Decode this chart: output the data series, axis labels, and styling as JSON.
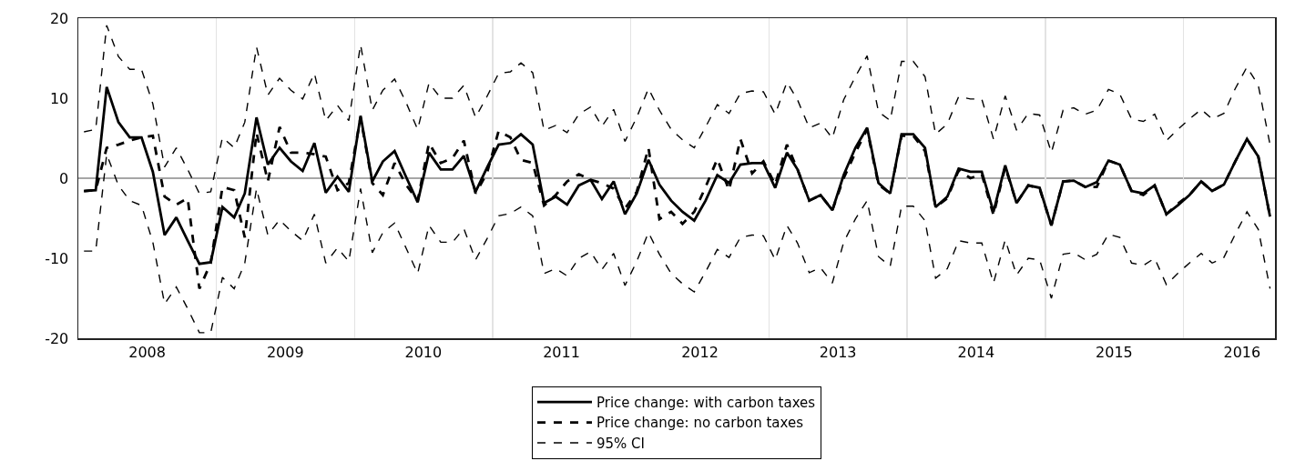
{
  "chart_data": {
    "type": "line",
    "x": [
      "2008-01",
      "2008-02",
      "2008-03",
      "2008-04",
      "2008-05",
      "2008-06",
      "2008-07",
      "2008-08",
      "2008-09",
      "2008-10",
      "2008-11",
      "2008-12",
      "2009-01",
      "2009-02",
      "2009-03",
      "2009-04",
      "2009-05",
      "2009-06",
      "2009-07",
      "2009-08",
      "2009-09",
      "2009-10",
      "2009-11",
      "2009-12",
      "2010-01",
      "2010-02",
      "2010-03",
      "2010-04",
      "2010-05",
      "2010-06",
      "2010-07",
      "2010-08",
      "2010-09",
      "2010-10",
      "2010-11",
      "2010-12",
      "2011-01",
      "2011-02",
      "2011-03",
      "2011-04",
      "2011-05",
      "2011-06",
      "2011-07",
      "2011-08",
      "2011-09",
      "2011-10",
      "2011-11",
      "2011-12",
      "2012-01",
      "2012-02",
      "2012-03",
      "2012-04",
      "2012-05",
      "2012-06",
      "2012-07",
      "2012-08",
      "2012-09",
      "2012-10",
      "2012-11",
      "2012-12",
      "2013-01",
      "2013-02",
      "2013-03",
      "2013-04",
      "2013-05",
      "2013-06",
      "2013-07",
      "2013-08",
      "2013-09",
      "2013-10",
      "2013-11",
      "2013-12",
      "2014-01",
      "2014-02",
      "2014-03",
      "2014-04",
      "2014-05",
      "2014-06",
      "2014-07",
      "2014-08",
      "2014-09",
      "2014-10",
      "2014-11",
      "2014-12",
      "2015-01",
      "2015-02",
      "2015-03",
      "2015-04",
      "2015-05",
      "2015-06",
      "2015-07",
      "2015-08",
      "2015-09",
      "2015-10",
      "2015-11",
      "2015-12",
      "2016-01",
      "2016-02",
      "2016-03",
      "2016-04",
      "2016-05",
      "2016-06",
      "2016-07",
      "2016-08"
    ],
    "series": [
      {
        "name": "Price change: with carbon taxes",
        "color": "#000000",
        "line_style": "solid",
        "values": [
          -1.6,
          -1.5,
          11.4,
          7.0,
          5.1,
          5.1,
          0.8,
          -7.1,
          -4.9,
          -7.8,
          -10.7,
          -10.5,
          -3.6,
          -4.9,
          -1.9,
          7.6,
          1.7,
          3.8,
          2.1,
          0.9,
          4.4,
          -1.8,
          0.2,
          -1.7,
          7.8,
          -0.4,
          2.1,
          3.4,
          0.2,
          -3.0,
          3.2,
          1.1,
          1.1,
          2.8,
          -1.7,
          1.3,
          4.2,
          4.4,
          5.5,
          4.2,
          -3.1,
          -2.3,
          -3.3,
          -0.9,
          -0.2,
          -2.6,
          -0.4,
          -4.5,
          -1.9,
          2.3,
          -0.8,
          -2.8,
          -4.2,
          -5.3,
          -2.8,
          0.4,
          -0.6,
          1.7,
          1.9,
          1.9,
          -1.2,
          3.2,
          1.1,
          -2.8,
          -2.1,
          -4.0,
          0.4,
          3.8,
          6.3,
          -0.6,
          -1.9,
          5.5,
          5.5,
          3.8,
          -3.6,
          -2.3,
          1.2,
          0.8,
          0.8,
          -4.2,
          1.6,
          -3.1,
          -0.9,
          -1.2,
          -5.9,
          -0.4,
          -0.3,
          -1.1,
          -0.5,
          2.2,
          1.7,
          -1.6,
          -1.9,
          -0.9,
          -4.5,
          -3.4,
          -2.1,
          -0.4,
          -1.6,
          -0.8,
          2.1,
          4.9,
          2.7,
          -4.8
        ]
      },
      {
        "name": "Price change: no carbon taxes",
        "color": "#000000",
        "line_style": "dashed",
        "values": [
          -1.6,
          -1.5,
          3.8,
          4.2,
          4.7,
          5.1,
          5.3,
          -2.3,
          -3.3,
          -2.5,
          -13.8,
          -10.6,
          -1.1,
          -1.5,
          -7.4,
          5.7,
          -0.4,
          6.4,
          3.2,
          3.2,
          3.0,
          2.7,
          -1.5,
          -0.6,
          7.6,
          -0.6,
          -2.1,
          1.9,
          -0.8,
          -2.8,
          4.4,
          1.9,
          2.5,
          4.7,
          -1.9,
          0.6,
          5.9,
          5.1,
          2.3,
          1.9,
          -3.4,
          -2.1,
          -0.4,
          0.5,
          -0.2,
          -0.6,
          -1.3,
          -3.8,
          -1.7,
          3.8,
          -5.1,
          -4.2,
          -5.7,
          -4.2,
          -1.1,
          2.4,
          -1.5,
          4.9,
          0.6,
          2.1,
          -0.8,
          4.2,
          1.1,
          -2.8,
          -2.1,
          -4.0,
          0.0,
          3.2,
          6.1,
          -0.8,
          -1.9,
          5.3,
          5.3,
          3.4,
          -3.6,
          -2.5,
          1.0,
          0.0,
          0.5,
          -4.6,
          1.4,
          -3.1,
          -0.9,
          -1.3,
          -5.9,
          -0.4,
          -0.3,
          -1.1,
          -1.1,
          2.2,
          1.7,
          -1.6,
          -2.1,
          -0.9,
          -4.5,
          -3.2,
          -2.1,
          -0.4,
          -1.6,
          -0.8,
          2.1,
          4.9,
          2.7,
          -4.8
        ]
      },
      {
        "name": "95% CI",
        "color": "#000000",
        "line_style": "dashed",
        "values": [
          5.8,
          6.1,
          19.1,
          15.2,
          13.6,
          13.6,
          9.3,
          1.4,
          3.8,
          1.1,
          -1.9,
          -1.7,
          5.1,
          3.8,
          7.0,
          16.4,
          10.4,
          12.5,
          11.0,
          9.9,
          13.1,
          7.2,
          9.1,
          7.2,
          16.7,
          8.5,
          11.0,
          12.4,
          9.5,
          6.1,
          11.9,
          10.0,
          10.0,
          11.6,
          7.6,
          10.2,
          13.1,
          13.3,
          14.4,
          13.2,
          6.0,
          6.6,
          5.7,
          8.0,
          8.9,
          6.5,
          8.6,
          4.6,
          7.6,
          11.2,
          8.5,
          6.1,
          4.8,
          3.8,
          6.4,
          9.2,
          8.1,
          10.6,
          10.9,
          10.8,
          8.0,
          12.0,
          9.8,
          6.3,
          6.9,
          5.0,
          9.8,
          12.7,
          15.3,
          8.3,
          7.2,
          14.6,
          14.6,
          12.7,
          5.5,
          6.8,
          10.2,
          9.9,
          9.9,
          4.9,
          10.3,
          6.0,
          8.1,
          7.9,
          3.2,
          8.5,
          8.8,
          8.0,
          8.5,
          11.1,
          10.5,
          7.4,
          7.1,
          8.0,
          4.7,
          6.1,
          7.4,
          8.6,
          7.4,
          8.1,
          11.2,
          13.9,
          11.6,
          4.2
        ]
      },
      {
        "color": "#000000",
        "line_style": "dashed",
        "values": [
          -9.1,
          -9.1,
          3.0,
          -0.9,
          -2.8,
          -3.4,
          -8.0,
          -15.7,
          -13.6,
          -16.3,
          -19.3,
          -19.3,
          -12.4,
          -13.8,
          -10.6,
          -1.3,
          -7.1,
          -5.2,
          -6.6,
          -7.8,
          -4.5,
          -10.6,
          -8.7,
          -10.4,
          -1.3,
          -9.3,
          -6.8,
          -5.6,
          -8.7,
          -11.9,
          -5.9,
          -8.0,
          -8.0,
          -6.3,
          -10.2,
          -7.6,
          -4.7,
          -4.4,
          -3.6,
          -4.7,
          -11.9,
          -11.3,
          -12.2,
          -10.0,
          -9.2,
          -11.4,
          -9.4,
          -13.4,
          -10.4,
          -6.8,
          -9.5,
          -11.9,
          -13.2,
          -14.2,
          -11.7,
          -8.9,
          -9.9,
          -7.4,
          -7.1,
          -7.2,
          -10.2,
          -5.9,
          -8.1,
          -11.8,
          -11.2,
          -13.1,
          -8.0,
          -5.1,
          -2.8,
          -9.8,
          -11.0,
          -3.5,
          -3.5,
          -5.3,
          -12.5,
          -11.3,
          -7.8,
          -8.1,
          -8.1,
          -13.1,
          -7.7,
          -12.1,
          -10.0,
          -10.2,
          -15.0,
          -9.5,
          -9.3,
          -10.2,
          -9.5,
          -7.0,
          -7.4,
          -10.6,
          -10.9,
          -10.0,
          -13.3,
          -11.9,
          -10.6,
          -9.4,
          -10.6,
          -9.9,
          -7.0,
          -4.2,
          -6.4,
          -13.8
        ]
      }
    ],
    "xlim": [
      "2007-12-17",
      "2016-08-14"
    ],
    "xticks": [
      {
        "value": "2008-06-16",
        "label": "2008"
      },
      {
        "value": "2008-12-16",
        "label": null
      },
      {
        "value": "2009-06-16",
        "label": "2009"
      },
      {
        "value": "2009-12-16",
        "label": null
      },
      {
        "value": "2010-06-16",
        "label": "2010"
      },
      {
        "value": "2010-12-16",
        "label": null
      },
      {
        "value": "2011-06-16",
        "label": "2011"
      },
      {
        "value": "2011-12-16",
        "label": null
      },
      {
        "value": "2012-06-16",
        "label": "2012"
      },
      {
        "value": "2012-12-16",
        "label": null
      },
      {
        "value": "2013-06-16",
        "label": "2013"
      },
      {
        "value": "2013-12-16",
        "label": null
      },
      {
        "value": "2014-06-16",
        "label": "2014"
      },
      {
        "value": "2014-12-16",
        "label": null
      },
      {
        "value": "2015-06-16",
        "label": "2015"
      },
      {
        "value": "2015-12-16",
        "label": null
      },
      {
        "value": "2016-05-19",
        "label": "2016"
      }
    ],
    "ylim": [
      -20,
      20
    ],
    "yticks": [
      -20,
      -10,
      0,
      10,
      20
    ],
    "ref_lines": [
      {
        "axis": "y",
        "value": 0,
        "color": "#a6a6a6"
      }
    ],
    "grid": "x",
    "legend": "bottom",
    "marker": "none"
  }
}
